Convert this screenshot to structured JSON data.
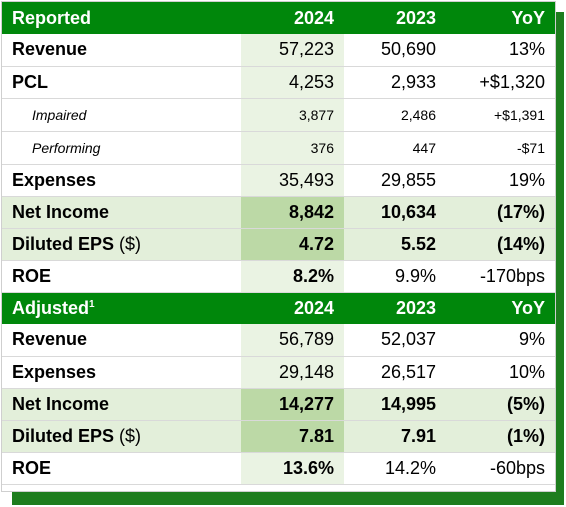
{
  "reported": {
    "header": [
      "Reported",
      "2024",
      "2023",
      "YoY"
    ],
    "rows": [
      {
        "label": "Revenue",
        "v2024": "57,223",
        "v2023": "50,690",
        "yoy": "13%"
      },
      {
        "label": "PCL",
        "v2024": "4,253",
        "v2023": "2,933",
        "yoy": "+$1,320"
      },
      {
        "label": "Impaired",
        "v2024": "3,877",
        "v2023": "2,486",
        "yoy": "+$1,391"
      },
      {
        "label": "Performing",
        "v2024": "376",
        "v2023": "447",
        "yoy": "-$71"
      },
      {
        "label": "Expenses",
        "v2024": "35,493",
        "v2023": "29,855",
        "yoy": "19%"
      },
      {
        "label": "Net Income",
        "v2024": "8,842",
        "v2023": "10,634",
        "yoy": "(17%)"
      },
      {
        "label": "Diluted EPS",
        "unit": "($)",
        "v2024": "4.72",
        "v2023": "5.52",
        "yoy": "(14%)"
      },
      {
        "label": "ROE",
        "v2024": "8.2%",
        "v2023": "9.9%",
        "yoy": "-170bps"
      }
    ]
  },
  "adjusted": {
    "header": [
      "Adjusted",
      "2024",
      "2023",
      "YoY"
    ],
    "footnote_mark": "1",
    "rows": [
      {
        "label": "Revenue",
        "v2024": "56,789",
        "v2023": "52,037",
        "yoy": "9%"
      },
      {
        "label": "Expenses",
        "v2024": "29,148",
        "v2023": "26,517",
        "yoy": "10%"
      },
      {
        "label": "Net Income",
        "v2024": "14,277",
        "v2023": "14,995",
        "yoy": "(5%)"
      },
      {
        "label": "Diluted EPS",
        "unit": "($)",
        "v2024": "7.81",
        "v2023": "7.91",
        "yoy": "(1%)"
      },
      {
        "label": "ROE",
        "v2024": "13.6%",
        "v2023": "14.2%",
        "yoy": "-60bps"
      }
    ]
  },
  "colors": {
    "header_green": "#00870b",
    "shadow_green": "#1e7d1e",
    "highlight": "#e3efda",
    "highlight_2024": "#bcd9a6"
  }
}
